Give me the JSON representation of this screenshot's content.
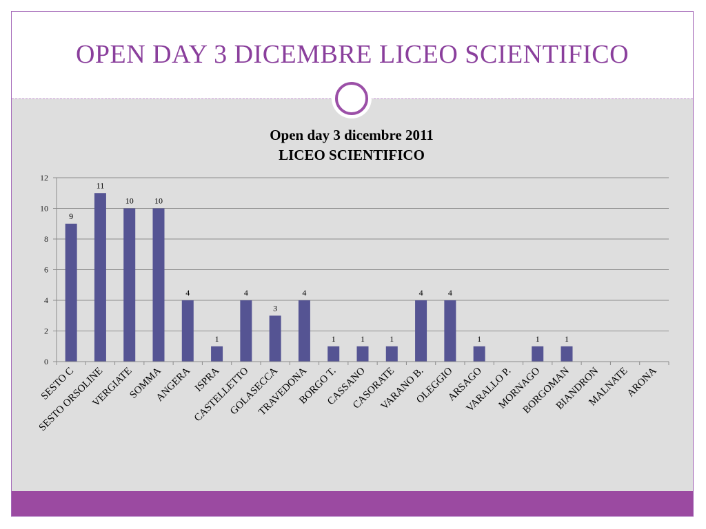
{
  "slide": {
    "title": "OPEN DAY 3 DICEMBRE LICEO SCIENTIFICO"
  },
  "colors": {
    "title": "#8a3f9c",
    "band": "#9b4aa1",
    "bar": "#555493",
    "content_bg": "#dedede"
  },
  "chart_data": {
    "type": "bar",
    "title_lines": [
      "Open day 3 dicembre 2011",
      "LICEO  SCIENTIFICO"
    ],
    "categories": [
      "SESTO C",
      "SESTO ORSOLINE",
      "VERGIATE",
      "SOMMA",
      "ANGERA",
      "ISPRA",
      "CASTELLETTO",
      "GOLASECCA",
      "TRAVEDONA",
      "BORGO T.",
      "CASSANO",
      "CASORATE",
      "VARANO B.",
      "OLEGGIO",
      "ARSAGO",
      "VARALLO P.",
      "MORNAGO",
      "BORGOMAN",
      "BIANDRON",
      "MALNATE",
      "ARONA"
    ],
    "values": [
      9,
      11,
      10,
      10,
      4,
      1,
      4,
      3,
      4,
      1,
      1,
      1,
      4,
      4,
      1,
      0,
      1,
      1,
      0,
      0,
      0
    ],
    "data_labels": [
      "9",
      "11",
      "10",
      "10",
      "4",
      "1",
      "4",
      "3",
      "4",
      "1",
      "1",
      "1",
      "4",
      "4",
      "1",
      "",
      "1",
      "1",
      "",
      "",
      ""
    ],
    "ylim": [
      0,
      12
    ],
    "yticks": [
      0,
      2,
      4,
      6,
      8,
      10,
      12
    ],
    "grid": true,
    "legend": "none",
    "xlabel": "",
    "ylabel": ""
  }
}
